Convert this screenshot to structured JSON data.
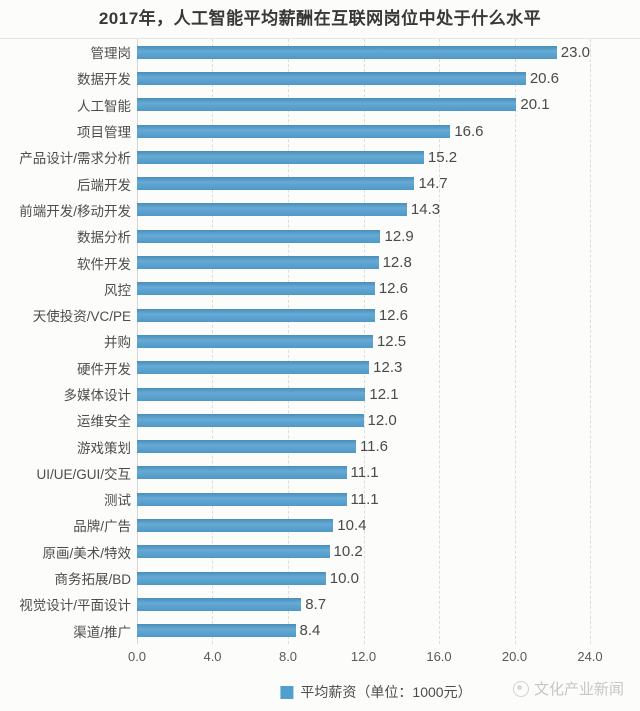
{
  "title": "2017年，人工智能平均薪酬在互联网岗位中处于什么水平",
  "chart_data": {
    "type": "bar",
    "orientation": "horizontal",
    "title": "2017年，人工智能平均薪酬在互联网岗位中处于什么水平",
    "categories": [
      "管理岗",
      "数据开发",
      "人工智能",
      "项目管理",
      "产品设计/需求分析",
      "后端开发",
      "前端开发/移动开发",
      "数据分析",
      "软件开发",
      "风控",
      "天使投资/VC/PE",
      "并购",
      "硬件开发",
      "多媒体设计",
      "运维安全",
      "游戏策划",
      "UI/UE/GUI/交互",
      "测试",
      "品牌/广告",
      "原画/美术/特效",
      "商务拓展/BD",
      "视觉设计/平面设计",
      "渠道/推广"
    ],
    "values": [
      23.0,
      20.6,
      20.1,
      16.6,
      15.2,
      14.7,
      14.3,
      12.9,
      12.8,
      12.6,
      12.6,
      12.5,
      12.3,
      12.1,
      12.0,
      11.6,
      11.1,
      11.1,
      10.4,
      10.2,
      10.0,
      8.7,
      8.4
    ],
    "xlim": [
      0,
      24
    ],
    "xticks": [
      "0.0",
      "4.0",
      "8.0",
      "12.0",
      "16.0",
      "20.0",
      "24.0"
    ],
    "grid": true,
    "legend": "平均薪资（单位：1000元）",
    "legend_position": "bottom-center",
    "bar_color": "#519ecf",
    "value_label_color": "#4a4a4a"
  },
  "footer": {
    "watermark": "文化产业新闻"
  }
}
